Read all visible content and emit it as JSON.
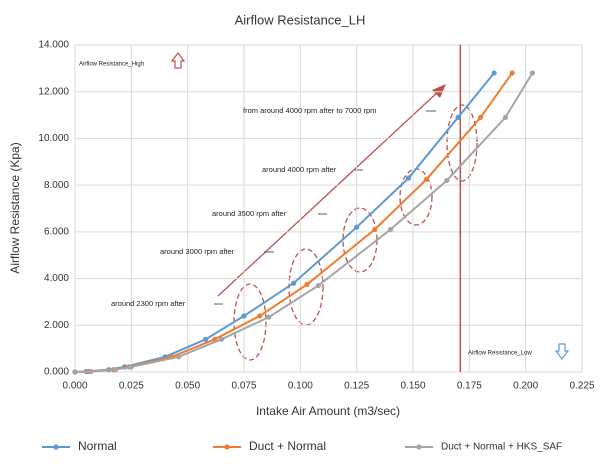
{
  "chart_data": {
    "type": "line",
    "title": "Airflow Resistance_LH",
    "x_label": "Intake Air Amount (m3/sec)",
    "y_label": "Airflow Resistance (Kpa)",
    "xlim": [
      0,
      0.225
    ],
    "xticks": [
      {
        "value": 0,
        "label": "0.000"
      },
      {
        "value": 0.025,
        "label": "0.025"
      },
      {
        "value": 0.05,
        "label": "0.050"
      },
      {
        "value": 0.075,
        "label": "0.075"
      },
      {
        "value": 0.1,
        "label": "0.100"
      },
      {
        "value": 0.125,
        "label": "0.125"
      },
      {
        "value": 0.15,
        "label": "0.150"
      },
      {
        "value": 0.175,
        "label": "0.175"
      },
      {
        "value": 0.2,
        "label": "0.200"
      },
      {
        "value": 0.225,
        "label": "0.225"
      }
    ],
    "ylim": [
      0,
      14
    ],
    "yticks": [
      {
        "value": 0,
        "label": "0.000"
      },
      {
        "value": 2,
        "label": "2.000"
      },
      {
        "value": 4,
        "label": "4.000"
      },
      {
        "value": 6,
        "label": "6.000"
      },
      {
        "value": 8,
        "label": "8.000"
      },
      {
        "value": 10,
        "label": "10.000"
      },
      {
        "value": 12,
        "label": "12.000"
      },
      {
        "value": 14,
        "label": "14.000"
      }
    ],
    "grid": true,
    "series": [
      {
        "name": "Normal",
        "color": "#5b9bd5",
        "x": [
          0,
          0.005,
          0.015,
          0.022,
          0.04,
          0.058,
          0.075,
          0.097,
          0.125,
          0.148,
          0.17,
          0.186
        ],
        "values": [
          0,
          0.02,
          0.1,
          0.22,
          0.65,
          1.4,
          2.4,
          3.8,
          6.2,
          8.3,
          10.9,
          12.8
        ]
      },
      {
        "name": "Duct + Normal",
        "color": "#ed7d31",
        "x": [
          0,
          0.006,
          0.017,
          0.024,
          0.043,
          0.062,
          0.082,
          0.103,
          0.133,
          0.156,
          0.18,
          0.194
        ],
        "values": [
          0,
          0.02,
          0.1,
          0.22,
          0.65,
          1.4,
          2.4,
          3.75,
          6.1,
          8.25,
          10.9,
          12.8
        ]
      },
      {
        "name": "Duct + Normal + HKS_SAF",
        "color": "#a5a5a5",
        "x": [
          0,
          0.007,
          0.018,
          0.025,
          0.046,
          0.065,
          0.086,
          0.108,
          0.14,
          0.165,
          0.191,
          0.203
        ],
        "values": [
          0,
          0.02,
          0.1,
          0.22,
          0.65,
          1.4,
          2.35,
          3.7,
          6.1,
          8.2,
          10.9,
          12.8
        ]
      }
    ],
    "reference_line": {
      "x": 0.171,
      "color": "#c0504d"
    },
    "annotations": [
      "Airflow Resistance_High",
      "Airflow Resistance_Low",
      "from around 4000 rpm after to 7000 rpm",
      "around 4000 rpm after",
      "around 3500 rpm after",
      "around 3000 rpm after",
      "around 2300 rpm after"
    ]
  }
}
